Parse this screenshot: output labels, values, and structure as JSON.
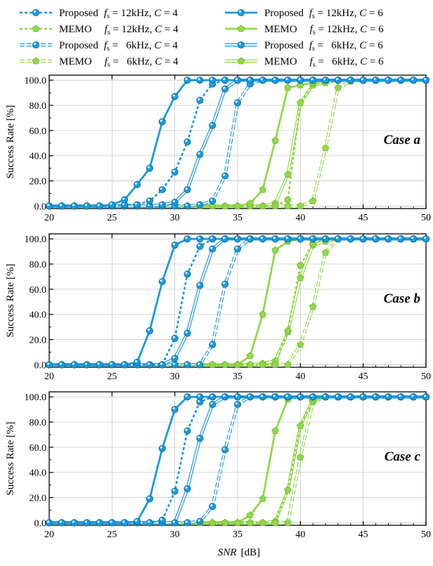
{
  "chart_data": {
    "type": "line",
    "xlabel": "SNR",
    "xlabel_unit": "[dB]",
    "ylabel": "Success Rate [%]",
    "xlim": [
      20,
      50
    ],
    "ylim": [
      -2,
      104
    ],
    "xticks": [
      "20",
      "25",
      "30",
      "35",
      "40",
      "45",
      "50"
    ],
    "yticks": [
      "0.0",
      "20.0",
      "40.0",
      "60.0",
      "80.0",
      "100.0"
    ],
    "grid": true,
    "legend": {
      "placement": "top",
      "entries": [
        {
          "method": "Proposed",
          "fs": "12kHz",
          "C": "4"
        },
        {
          "method": "Proposed",
          "fs": "12kHz",
          "C": "6"
        },
        {
          "method": "MEMO",
          "fs": "12kHz",
          "C": "4"
        },
        {
          "method": "MEMO",
          "fs": "12kHz",
          "C": "6"
        },
        {
          "method": "Proposed",
          "fs": "6kHz",
          "C": "4"
        },
        {
          "method": "Proposed",
          "fs": "6kHz",
          "C": "6"
        },
        {
          "method": "MEMO",
          "fs": "6kHz",
          "C": "4"
        },
        {
          "method": "MEMO",
          "fs": "6kHz",
          "C": "6"
        }
      ]
    },
    "colors": {
      "proposed": "#1a9ae0",
      "memo": "#92d84a",
      "grid": "#c8c8c8"
    },
    "x": [
      20,
      21,
      22,
      23,
      24,
      25,
      26,
      27,
      28,
      29,
      30,
      31,
      32,
      33,
      34,
      35,
      36,
      37,
      38,
      39,
      40,
      41,
      42,
      43,
      44,
      45,
      46,
      47,
      48,
      49,
      50
    ],
    "panels": [
      {
        "annotation": "Case a",
        "series": [
          {
            "legend_index": 0,
            "values": [
              0,
              0,
              0,
              0,
              0,
              0,
              1,
              1,
              4,
              13,
              27,
              51,
              84,
              97,
              100,
              100,
              100,
              100,
              100,
              100,
              100,
              100,
              100,
              100,
              100,
              100,
              100,
              100,
              100,
              100,
              100
            ]
          },
          {
            "legend_index": 1,
            "values": [
              0,
              0,
              0,
              0,
              0,
              1,
              5,
              17,
              30,
              67,
              87,
              100,
              100,
              100,
              100,
              100,
              100,
              100,
              100,
              100,
              100,
              100,
              100,
              100,
              100,
              100,
              100,
              100,
              100,
              100,
              100
            ]
          },
          {
            "legend_index": 2,
            "values": [
              0,
              0,
              0,
              0,
              0,
              0,
              0,
              0,
              0,
              0,
              0,
              0,
              0,
              0,
              0,
              0,
              0,
              0,
              0,
              5,
              82,
              97,
              98,
              100,
              100,
              100,
              100,
              100,
              100,
              100,
              100
            ]
          },
          {
            "legend_index": 3,
            "values": [
              0,
              0,
              0,
              0,
              0,
              0,
              0,
              0,
              0,
              0,
              0,
              0,
              0,
              0,
              0,
              0,
              2,
              13,
              52,
              94,
              96,
              98,
              100,
              100,
              100,
              100,
              100,
              100,
              100,
              100,
              100
            ]
          },
          {
            "legend_index": 4,
            "values": [
              0,
              0,
              0,
              0,
              0,
              0,
              0,
              0,
              0,
              0,
              0,
              0,
              1,
              4,
              24,
              82,
              97,
              100,
              100,
              100,
              100,
              100,
              100,
              100,
              100,
              100,
              100,
              100,
              100,
              100,
              100
            ]
          },
          {
            "legend_index": 5,
            "values": [
              0,
              0,
              0,
              0,
              0,
              0,
              0,
              0,
              0,
              1,
              3,
              13,
              41,
              64,
              93,
              100,
              100,
              100,
              100,
              100,
              100,
              100,
              100,
              100,
              100,
              100,
              100,
              100,
              100,
              100,
              100
            ]
          },
          {
            "legend_index": 6,
            "values": [
              0,
              0,
              0,
              0,
              0,
              0,
              0,
              0,
              0,
              0,
              0,
              0,
              0,
              0,
              0,
              0,
              0,
              0,
              0,
              0,
              0,
              4,
              46,
              94,
              99,
              100,
              100,
              100,
              100,
              100,
              100
            ]
          },
          {
            "legend_index": 7,
            "values": [
              0,
              0,
              0,
              0,
              0,
              0,
              0,
              0,
              0,
              0,
              0,
              0,
              0,
              0,
              0,
              0,
              0,
              0,
              2,
              25,
              82,
              96,
              98,
              100,
              100,
              100,
              100,
              100,
              100,
              100,
              100
            ]
          }
        ]
      },
      {
        "annotation": "Case b",
        "series": [
          {
            "legend_index": 0,
            "values": [
              0,
              0,
              0,
              0,
              0,
              0,
              0,
              0,
              0,
              0,
              21,
              72,
              94,
              100,
              100,
              100,
              100,
              100,
              100,
              100,
              100,
              100,
              100,
              100,
              100,
              100,
              100,
              100,
              100,
              100,
              100
            ]
          },
          {
            "legend_index": 1,
            "values": [
              0,
              0,
              0,
              0,
              0,
              0,
              0,
              2,
              27,
              66,
              95,
              100,
              100,
              100,
              100,
              100,
              100,
              100,
              100,
              100,
              100,
              100,
              100,
              100,
              100,
              100,
              100,
              100,
              100,
              100,
              100
            ]
          },
          {
            "legend_index": 2,
            "values": [
              0,
              0,
              0,
              0,
              0,
              0,
              0,
              0,
              0,
              0,
              0,
              0,
              0,
              0,
              0,
              0,
              0,
              0,
              0,
              27,
              79,
              96,
              100,
              100,
              100,
              100,
              100,
              100,
              100,
              100,
              100
            ]
          },
          {
            "legend_index": 3,
            "values": [
              0,
              0,
              0,
              0,
              0,
              0,
              0,
              0,
              0,
              0,
              0,
              0,
              0,
              0,
              0,
              0,
              7,
              40,
              91,
              98,
              100,
              100,
              100,
              100,
              100,
              100,
              100,
              100,
              100,
              100,
              100
            ]
          },
          {
            "legend_index": 4,
            "values": [
              0,
              0,
              0,
              0,
              0,
              0,
              0,
              0,
              0,
              0,
              0,
              0,
              0,
              16,
              64,
              92,
              100,
              100,
              100,
              100,
              100,
              100,
              100,
              100,
              100,
              100,
              100,
              100,
              100,
              100,
              100
            ]
          },
          {
            "legend_index": 5,
            "values": [
              0,
              0,
              0,
              0,
              0,
              0,
              0,
              0,
              0,
              0,
              5,
              25,
              63,
              92,
              100,
              100,
              100,
              100,
              100,
              100,
              100,
              100,
              100,
              100,
              100,
              100,
              100,
              100,
              100,
              100,
              100
            ]
          },
          {
            "legend_index": 6,
            "values": [
              0,
              0,
              0,
              0,
              0,
              0,
              0,
              0,
              0,
              0,
              0,
              0,
              0,
              0,
              0,
              0,
              0,
              0,
              0,
              0,
              16,
              46,
              89,
              100,
              100,
              100,
              100,
              100,
              100,
              100,
              100
            ]
          },
          {
            "legend_index": 7,
            "values": [
              0,
              0,
              0,
              0,
              0,
              0,
              0,
              0,
              0,
              0,
              0,
              0,
              0,
              0,
              0,
              0,
              0,
              1,
              3,
              26,
              69,
              95,
              98,
              100,
              100,
              100,
              100,
              100,
              100,
              100,
              100
            ]
          }
        ]
      },
      {
        "annotation": "Case c",
        "series": [
          {
            "legend_index": 0,
            "values": [
              0,
              0,
              0,
              0,
              0,
              0,
              0,
              0,
              0,
              2,
              25,
              73,
              96,
              100,
              100,
              100,
              100,
              100,
              100,
              100,
              100,
              100,
              100,
              100,
              100,
              100,
              100,
              100,
              100,
              100,
              100
            ]
          },
          {
            "legend_index": 1,
            "values": [
              0,
              0,
              0,
              0,
              0,
              0,
              0,
              1,
              19,
              59,
              90,
              100,
              100,
              100,
              100,
              100,
              100,
              100,
              100,
              100,
              100,
              100,
              100,
              100,
              100,
              100,
              100,
              100,
              100,
              100,
              100
            ]
          },
          {
            "legend_index": 2,
            "values": [
              0,
              0,
              0,
              0,
              0,
              0,
              0,
              0,
              0,
              0,
              0,
              0,
              0,
              0,
              0,
              0,
              0,
              0,
              0,
              26,
              77,
              97,
              100,
              100,
              100,
              100,
              100,
              100,
              100,
              100,
              100
            ]
          },
          {
            "legend_index": 3,
            "values": [
              0,
              0,
              0,
              0,
              0,
              0,
              0,
              0,
              0,
              0,
              0,
              0,
              0,
              0,
              0,
              0,
              6,
              19,
              73,
              98,
              100,
              100,
              100,
              100,
              100,
              100,
              100,
              100,
              100,
              100,
              100
            ]
          },
          {
            "legend_index": 4,
            "values": [
              0,
              0,
              0,
              0,
              0,
              0,
              0,
              0,
              0,
              0,
              0,
              0,
              1,
              13,
              58,
              94,
              100,
              100,
              100,
              100,
              100,
              100,
              100,
              100,
              100,
              100,
              100,
              100,
              100,
              100,
              100
            ]
          },
          {
            "legend_index": 5,
            "values": [
              0,
              0,
              0,
              0,
              0,
              0,
              0,
              0,
              0,
              0,
              0,
              27,
              67,
              94,
              100,
              100,
              100,
              100,
              100,
              100,
              100,
              100,
              100,
              100,
              100,
              100,
              100,
              100,
              100,
              100,
              100
            ]
          },
          {
            "legend_index": 6,
            "values": [
              0,
              0,
              0,
              0,
              0,
              0,
              0,
              0,
              0,
              0,
              0,
              0,
              0,
              0,
              0,
              0,
              0,
              0,
              0,
              0,
              52,
              96,
              100,
              100,
              100,
              100,
              100,
              100,
              100,
              100,
              100
            ]
          },
          {
            "legend_index": 7,
            "values": [
              0,
              0,
              0,
              0,
              0,
              0,
              0,
              0,
              0,
              0,
              0,
              0,
              0,
              0,
              0,
              0,
              0,
              0,
              1,
              26,
              77,
              98,
              100,
              100,
              100,
              100,
              100,
              100,
              100,
              100,
              100
            ]
          }
        ]
      }
    ]
  }
}
